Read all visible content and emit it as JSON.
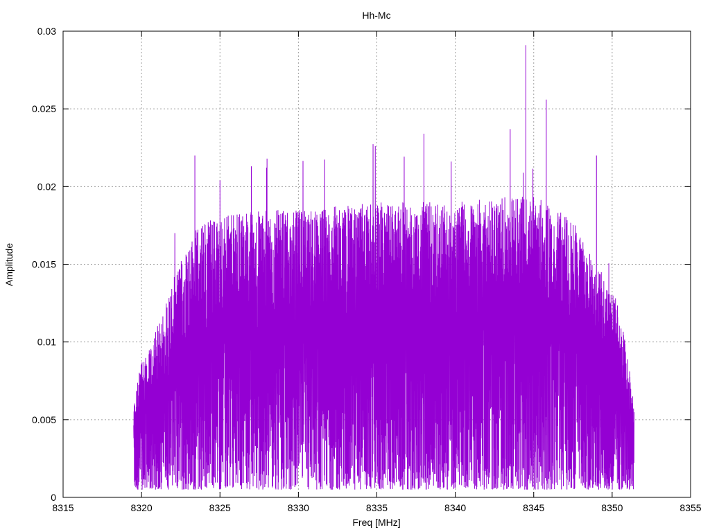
{
  "chart_data": {
    "type": "line",
    "title": "Hh-Mc",
    "xlabel": "Freq [MHz]",
    "ylabel": "Amplitude",
    "xlim": [
      8315,
      8355
    ],
    "ylim": [
      0,
      0.03
    ],
    "x_ticks": [
      "8315",
      "8320",
      "8325",
      "8330",
      "8335",
      "8340",
      "8345",
      "8350",
      "8355"
    ],
    "y_ticks": [
      "0",
      "0.005",
      "0.01",
      "0.015",
      "0.02",
      "0.025",
      "0.03"
    ],
    "grid": true,
    "series": [
      {
        "name": "",
        "color": "#9400d3",
        "x_range": [
          8319.5,
          8351.4
        ],
        "envelope": {
          "freq": [
            8319.5,
            8320,
            8320.5,
            8321,
            8322,
            8323,
            8324,
            8325,
            8327,
            8330,
            8335,
            8340,
            8345,
            8348,
            8349,
            8350,
            8350.5,
            8351,
            8351.4
          ],
          "upper": [
            0.006,
            0.009,
            0.0095,
            0.011,
            0.014,
            0.0165,
            0.018,
            0.018,
            0.0185,
            0.0185,
            0.019,
            0.019,
            0.0195,
            0.0175,
            0.015,
            0.0135,
            0.012,
            0.009,
            0.006
          ],
          "lower": [
            0.0005,
            0.0005,
            0.0005,
            0.0005,
            0.0005,
            0.0005,
            0.0005,
            0.0005,
            0.0005,
            0.0005,
            0.0005,
            0.0005,
            0.0005,
            0.0005,
            0.0005,
            0.0005,
            0.0005,
            0.0005,
            0.0005
          ]
        },
        "peaks": [
          {
            "x": 8323.4,
            "y": 0.022
          },
          {
            "x": 8325.0,
            "y": 0.0204
          },
          {
            "x": 8327.0,
            "y": 0.0213
          },
          {
            "x": 8328.0,
            "y": 0.0218
          },
          {
            "x": 8338.0,
            "y": 0.0234
          },
          {
            "x": 8343.5,
            "y": 0.0237
          },
          {
            "x": 8344.5,
            "y": 0.0291
          },
          {
            "x": 8345.8,
            "y": 0.0256
          },
          {
            "x": 8349.0,
            "y": 0.022
          }
        ]
      }
    ]
  }
}
